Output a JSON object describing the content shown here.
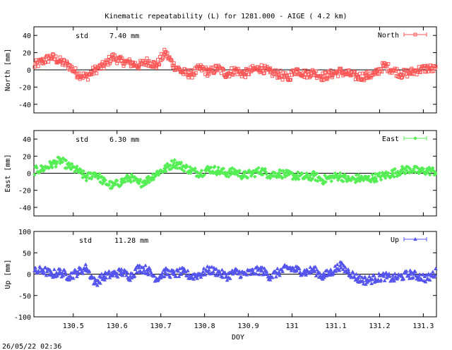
{
  "title": "Kinematic repeatability (L) for 1281.000 - AIGE  (  4.2 km)",
  "footer_timestamp": "26/05/22 02:36",
  "chart_data": {
    "type": "scatter",
    "xlabel": "DOY",
    "xlim": [
      130.41,
      131.33
    ],
    "x_ticks": [
      130.5,
      130.6,
      130.7,
      130.8,
      130.9,
      131,
      131.1,
      131.2,
      131.3
    ],
    "x_tick_labels": [
      "130.5",
      "130.6",
      "130.7",
      "130.8",
      "130.9",
      "131",
      "131.1",
      "131.2",
      "131.3"
    ],
    "grid": false,
    "legend_placement": "top-right",
    "panels": [
      {
        "name": "North",
        "ylabel": "North [mm]",
        "ylim": [
          -50,
          50
        ],
        "y_ticks": [
          -40,
          -20,
          0,
          20,
          40
        ],
        "std_label": "std",
        "std_value": "7.40 mm",
        "color": "#ff5555",
        "marker": "square",
        "x": [
          130.41,
          130.43,
          130.45,
          130.47,
          130.49,
          130.51,
          130.53,
          130.55,
          130.57,
          130.59,
          130.61,
          130.63,
          130.65,
          130.67,
          130.69,
          130.71,
          130.73,
          130.75,
          130.77,
          130.79,
          130.81,
          130.83,
          130.85,
          130.87,
          130.89,
          130.91,
          130.93,
          130.95,
          130.97,
          130.99,
          131.01,
          131.03,
          131.05,
          131.07,
          131.09,
          131.11,
          131.13,
          131.15,
          131.17,
          131.19,
          131.21,
          131.23,
          131.25,
          131.27,
          131.29,
          131.31,
          131.33
        ],
        "y": [
          5,
          10,
          15,
          10,
          5,
          -5,
          -8,
          0,
          5,
          15,
          10,
          8,
          5,
          10,
          5,
          20,
          5,
          -3,
          -5,
          2,
          -3,
          2,
          -5,
          0,
          -5,
          0,
          2,
          -3,
          -5,
          -10,
          0,
          -5,
          -3,
          -8,
          -5,
          -2,
          -5,
          -8,
          -7,
          -5,
          5,
          0,
          -5,
          -3,
          0,
          2,
          0
        ]
      },
      {
        "name": "East",
        "ylabel": "East [mm]",
        "ylim": [
          -50,
          50
        ],
        "y_ticks": [
          -40,
          -20,
          0,
          20,
          40
        ],
        "std_label": "std",
        "std_value": "6.30 mm",
        "color": "#55ee55",
        "marker": "diamond",
        "x": [
          130.41,
          130.43,
          130.45,
          130.47,
          130.49,
          130.51,
          130.53,
          130.55,
          130.57,
          130.59,
          130.61,
          130.63,
          130.65,
          130.67,
          130.69,
          130.71,
          130.73,
          130.75,
          130.77,
          130.79,
          130.81,
          130.83,
          130.85,
          130.87,
          130.89,
          130.91,
          130.93,
          130.95,
          130.97,
          130.99,
          131.01,
          131.03,
          131.05,
          131.07,
          131.09,
          131.11,
          131.13,
          131.15,
          131.17,
          131.19,
          131.21,
          131.23,
          131.25,
          131.27,
          131.29,
          131.31,
          131.33
        ],
        "y": [
          3,
          5,
          10,
          15,
          8,
          3,
          -5,
          0,
          -10,
          -15,
          -10,
          -5,
          -12,
          -8,
          0,
          5,
          12,
          8,
          3,
          0,
          5,
          3,
          0,
          2,
          -3,
          0,
          3,
          -2,
          0,
          -2,
          -3,
          -5,
          -3,
          -8,
          -5,
          -3,
          -8,
          -6,
          -7,
          -5,
          -3,
          0,
          3,
          5,
          2,
          3,
          2
        ]
      },
      {
        "name": "Up",
        "ylabel": "Up [mm]",
        "ylim": [
          -100,
          100
        ],
        "y_ticks": [
          -100,
          -50,
          0,
          50,
          100
        ],
        "std_label": "std",
        "std_value": "11.28 mm",
        "color": "#5555ee",
        "marker": "triangle",
        "x": [
          130.41,
          130.43,
          130.45,
          130.47,
          130.49,
          130.51,
          130.53,
          130.55,
          130.57,
          130.59,
          130.61,
          130.63,
          130.65,
          130.67,
          130.69,
          130.71,
          130.73,
          130.75,
          130.77,
          130.79,
          130.81,
          130.83,
          130.85,
          130.87,
          130.89,
          130.91,
          130.93,
          130.95,
          130.97,
          130.99,
          131.01,
          131.03,
          131.05,
          131.07,
          131.09,
          131.11,
          131.13,
          131.15,
          131.17,
          131.19,
          131.21,
          131.23,
          131.25,
          131.27,
          131.29,
          131.31,
          131.33
        ],
        "y": [
          5,
          10,
          0,
          5,
          -5,
          5,
          15,
          -20,
          -5,
          0,
          5,
          -5,
          15,
          10,
          -10,
          5,
          0,
          5,
          -5,
          0,
          10,
          5,
          -5,
          5,
          0,
          5,
          10,
          -5,
          5,
          15,
          10,
          5,
          10,
          -5,
          5,
          20,
          5,
          -10,
          -15,
          -10,
          -5,
          -10,
          -5,
          0,
          -5,
          -10,
          5
        ]
      }
    ]
  }
}
